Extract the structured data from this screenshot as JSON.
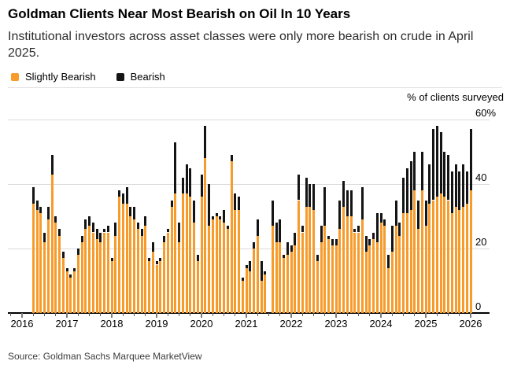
{
  "header": {
    "title": "Goldman Clients Near Most Bearish on Oil In 10 Years",
    "subtitle": "Institutional investors across asset classes were only more bearish on crude in April 2025."
  },
  "legend": [
    {
      "label": "Slightly Bearish",
      "color": "#F79B2B"
    },
    {
      "label": "Bearish",
      "color": "#141414"
    }
  ],
  "axis_note": "% of clients surveyed",
  "source": "Source: Goldman Sachs Marquee MarketView",
  "colors": {
    "slightly_bearish": "#F79B2B",
    "bearish": "#141414",
    "gridline": "#dbdbdb",
    "background": "#ffffff"
  },
  "chart_data": {
    "type": "bar",
    "stacked": true,
    "title": "Goldman Clients Near Most Bearish on Oil In 10 Years",
    "ylabel": "% of clients surveyed",
    "ylim": [
      0,
      60
    ],
    "yticks": [
      0,
      20,
      40,
      60
    ],
    "ytick_labels": [
      "0",
      "20",
      "40",
      "60%"
    ],
    "grid": "horizontal",
    "legend_position": "top-left",
    "frequency": "monthly",
    "x_start": "2016-04",
    "x_end": "2026-01",
    "missing_months": [
      "2021-07"
    ],
    "year_ticks": [
      2016,
      2017,
      2018,
      2019,
      2020,
      2021,
      2022,
      2023,
      2024,
      2025,
      2026
    ],
    "series": [
      {
        "name": "Slightly Bearish",
        "color": "#F79B2B",
        "values": [
          34,
          32,
          31,
          22,
          29,
          43,
          28,
          24,
          17,
          13,
          11,
          13,
          18,
          22,
          26,
          27,
          25,
          23,
          22,
          25,
          25,
          16,
          24,
          36,
          34,
          34,
          30,
          29,
          26,
          24,
          27,
          16,
          19,
          15,
          16,
          22,
          25,
          33,
          37,
          22,
          37,
          37,
          36,
          28,
          16,
          36,
          48,
          27,
          29,
          30,
          29,
          28,
          26,
          47,
          32,
          32,
          10,
          14,
          13,
          20,
          24,
          10,
          12,
          null,
          27,
          22,
          22,
          17,
          18,
          19,
          21,
          35,
          25,
          33,
          33,
          32,
          16,
          22,
          27,
          23,
          21,
          21,
          26,
          33,
          30,
          30,
          25,
          25,
          29,
          19,
          21,
          23,
          22,
          28,
          27,
          14,
          19,
          27,
          24,
          31,
          31,
          32,
          38,
          26,
          38,
          27,
          34,
          35,
          36,
          37,
          36,
          35,
          31,
          33,
          32,
          33,
          34,
          38
        ]
      },
      {
        "name": "Bearish",
        "color": "#141414",
        "values": [
          5,
          3,
          2,
          3,
          4,
          6,
          2,
          2,
          2,
          1,
          1,
          1,
          2,
          2,
          3,
          3,
          3,
          3,
          3,
          1,
          2,
          1,
          4,
          2,
          3,
          5,
          3,
          4,
          2,
          2,
          3,
          1,
          3,
          1,
          1,
          2,
          1,
          2,
          16,
          6,
          5,
          9,
          9,
          7,
          2,
          7,
          10,
          13,
          1,
          1,
          1,
          4,
          1,
          2,
          5,
          4,
          1,
          1,
          3,
          2,
          5,
          6,
          1,
          null,
          8,
          6,
          7,
          1,
          4,
          2,
          4,
          8,
          2,
          9,
          7,
          8,
          2,
          5,
          12,
          1,
          2,
          2,
          9,
          8,
          8,
          8,
          1,
          2,
          10,
          5,
          2,
          2,
          9,
          3,
          2,
          4,
          8,
          8,
          4,
          11,
          14,
          15,
          12,
          9,
          12,
          8,
          12,
          22,
          22,
          19,
          14,
          14,
          13,
          13,
          12,
          13,
          10,
          19
        ]
      }
    ]
  }
}
